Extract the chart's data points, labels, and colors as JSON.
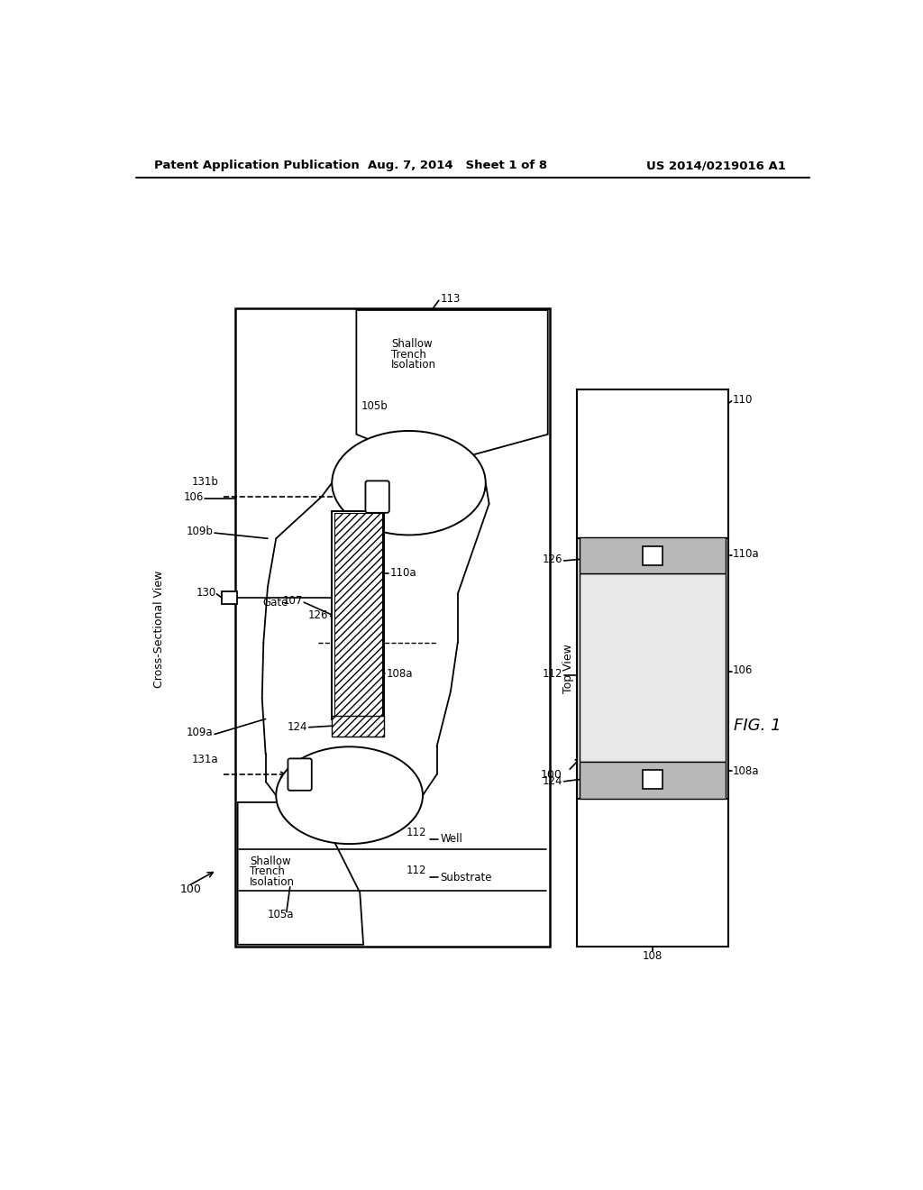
{
  "header_left": "Patent Application Publication",
  "header_center": "Aug. 7, 2014   Sheet 1 of 8",
  "header_right": "US 2014/0219016 A1",
  "bg": "#ffffff",
  "lc": "#000000"
}
